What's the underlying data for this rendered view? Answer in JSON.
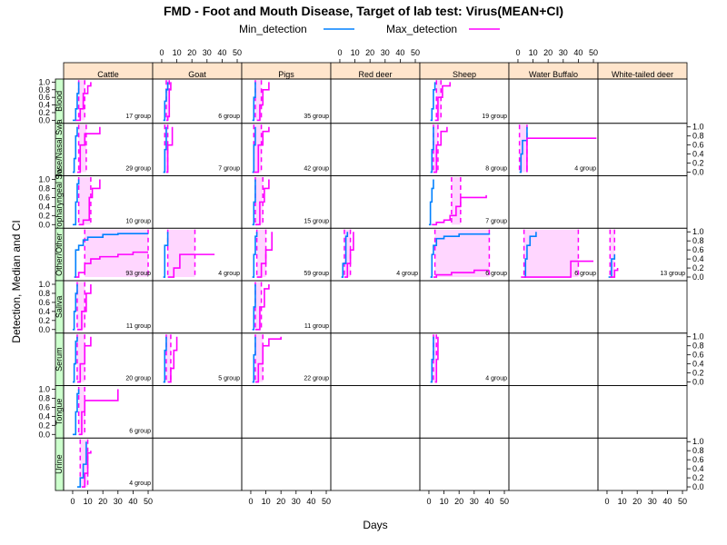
{
  "chart_data": {
    "type": "line",
    "title": "FMD - Foot and Mouth Disease, Target of lab test: Virus(MEAN+CI)",
    "xlabel": "Days",
    "ylabel": "Detection, Median and CI",
    "xlim": [
      -6,
      53
    ],
    "ylim": [
      -0.08,
      1.08
    ],
    "x_ticks": [
      0,
      10,
      20,
      30,
      40,
      50
    ],
    "y_ticks": [
      0.0,
      0.2,
      0.4,
      0.6,
      0.8,
      1.0
    ],
    "y_tick_labels": [
      "0.0",
      "0.2",
      "0.4",
      "0.6",
      "0.8",
      "1.0"
    ],
    "legend": {
      "position": "top-center",
      "items": [
        {
          "name": "Min_detection",
          "color": "#0080ff"
        },
        {
          "name": "Max_detection",
          "color": "#ff00ff"
        }
      ]
    },
    "colors": {
      "min": "#0080ff",
      "max": "#ff00ff",
      "ci_fill": "#ffd6ff",
      "strip_column": "#ffe5cc",
      "strip_row": "#ccffcc"
    },
    "columns": [
      "Cattle",
      "Goat",
      "Pigs",
      "Red deer",
      "Sheep",
      "Water Buffalo",
      "White-tailed deer"
    ],
    "rows": [
      "Blood",
      "Nasal Swab",
      "Oropharyngeal Swab",
      "Other/Other",
      "Saliva",
      "Serum",
      "Tongue",
      "Urine"
    ],
    "row_strip_labels": [
      "Blood",
      "Nose/Nasal Swa",
      "Oropharyngeal Sw",
      "Other/Other",
      "Saliva",
      "Serum",
      "Tongue",
      "Urine"
    ],
    "panels": [
      {
        "col": 0,
        "row": 0,
        "groups": "17 group",
        "min": [
          [
            0,
            0
          ],
          [
            2,
            0.3
          ],
          [
            3,
            0.7
          ],
          [
            4,
            1
          ]
        ],
        "max": [
          [
            2,
            0
          ],
          [
            5,
            0.3
          ],
          [
            7,
            0.7
          ],
          [
            10,
            0.9
          ],
          [
            12,
            1
          ]
        ],
        "ci_x": [
          4,
          8
        ]
      },
      {
        "col": 1,
        "row": 0,
        "groups": "6 group",
        "min": [
          [
            1,
            0
          ],
          [
            2,
            0.5
          ],
          [
            3,
            0.8
          ],
          [
            4,
            1
          ]
        ],
        "max": [
          [
            3,
            0
          ],
          [
            4,
            0.1
          ],
          [
            5,
            0.8
          ],
          [
            6,
            1
          ]
        ],
        "ci_x": [
          3,
          5
        ]
      },
      {
        "col": 2,
        "row": 0,
        "groups": "35 group",
        "min": [
          [
            1,
            0
          ],
          [
            2,
            0.6
          ],
          [
            3,
            1
          ]
        ],
        "max": [
          [
            4,
            0
          ],
          [
            6,
            0.4
          ],
          [
            8,
            0.8
          ],
          [
            12,
            1
          ]
        ],
        "ci_x": [
          3,
          7
        ]
      },
      {
        "col": 4,
        "row": 0,
        "groups": "19 group",
        "min": [
          [
            1,
            0
          ],
          [
            2,
            0.3
          ],
          [
            3,
            0.8
          ],
          [
            4,
            1
          ]
        ],
        "max": [
          [
            4,
            0
          ],
          [
            6,
            0.6
          ],
          [
            9,
            0.9
          ],
          [
            14,
            1
          ]
        ],
        "ci_x": [
          5,
          8
        ]
      },
      {
        "col": 0,
        "row": 1,
        "groups": "29 group",
        "min": [
          [
            0,
            0
          ],
          [
            1,
            0.3
          ],
          [
            2,
            0.8
          ],
          [
            3,
            1
          ]
        ],
        "max": [
          [
            3,
            0
          ],
          [
            5,
            0.6
          ],
          [
            8,
            0.85
          ],
          [
            18,
            1
          ]
        ],
        "ci_x": [
          4,
          9
        ]
      },
      {
        "col": 1,
        "row": 1,
        "groups": "7 group",
        "min": [
          [
            1,
            0
          ],
          [
            2,
            0.5
          ],
          [
            3,
            1
          ]
        ],
        "max": [
          [
            3,
            0
          ],
          [
            4,
            0.6
          ],
          [
            7,
            1
          ]
        ],
        "ci_x": [
          2,
          4
        ]
      },
      {
        "col": 2,
        "row": 1,
        "groups": "42 group",
        "min": [
          [
            1,
            0
          ],
          [
            2,
            0.6
          ],
          [
            3,
            1
          ]
        ],
        "max": [
          [
            2,
            0
          ],
          [
            5,
            0.6
          ],
          [
            8,
            0.9
          ],
          [
            12,
            1
          ]
        ],
        "ci_x": [
          2,
          7
        ]
      },
      {
        "col": 4,
        "row": 1,
        "groups": "8 group",
        "min": [
          [
            1,
            0
          ],
          [
            2,
            0.5
          ],
          [
            3,
            1
          ]
        ],
        "max": [
          [
            3,
            0
          ],
          [
            5,
            0.6
          ],
          [
            8,
            0.9
          ],
          [
            12,
            1
          ]
        ],
        "ci_x": [
          3,
          6
        ]
      },
      {
        "col": 5,
        "row": 1,
        "groups": "4 group",
        "min": [
          [
            1,
            0
          ],
          [
            2,
            0.4
          ],
          [
            3,
            0.7
          ],
          [
            6,
            1
          ]
        ],
        "max": [
          [
            6,
            0
          ],
          [
            6,
            0.75
          ],
          [
            52,
            0.75
          ]
        ],
        "ci_x": [
          1,
          6
        ]
      },
      {
        "col": 0,
        "row": 2,
        "groups": "10 group",
        "min": [
          [
            0,
            0
          ],
          [
            2,
            0.5
          ],
          [
            3,
            0.9
          ],
          [
            4,
            1
          ]
        ],
        "max": [
          [
            4,
            0
          ],
          [
            7,
            0.1
          ],
          [
            11,
            0.6
          ],
          [
            13,
            0.8
          ],
          [
            18,
            1
          ]
        ],
        "ci_x": [
          4,
          12
        ]
      },
      {
        "col": 2,
        "row": 2,
        "groups": "15 group",
        "min": [
          [
            1,
            0
          ],
          [
            2,
            0.5
          ],
          [
            3,
            1
          ]
        ],
        "max": [
          [
            3,
            0
          ],
          [
            6,
            0.5
          ],
          [
            9,
            0.8
          ],
          [
            12,
            1
          ]
        ],
        "ci_x": [
          3,
          8
        ]
      },
      {
        "col": 4,
        "row": 2,
        "groups": "7 group",
        "min": [
          [
            0,
            0
          ],
          [
            1,
            0.5
          ],
          [
            2,
            0.8
          ],
          [
            3,
            1
          ]
        ],
        "max": [
          [
            2,
            0
          ],
          [
            5,
            0.05
          ],
          [
            10,
            0.1
          ],
          [
            14,
            0.2
          ],
          [
            18,
            0.4
          ],
          [
            21,
            0.6
          ],
          [
            38,
            0.65
          ]
        ],
        "ci_x": [
          15,
          21
        ]
      },
      {
        "col": 0,
        "row": 3,
        "groups": "93 group",
        "min": [
          [
            1,
            0
          ],
          [
            2,
            0.6
          ],
          [
            4,
            0.7
          ],
          [
            7,
            0.82
          ],
          [
            10,
            0.88
          ],
          [
            20,
            0.94
          ],
          [
            30,
            0.96
          ],
          [
            50,
            0.96
          ]
        ],
        "max": [
          [
            2,
            0
          ],
          [
            4,
            0.1
          ],
          [
            8,
            0.3
          ],
          [
            12,
            0.4
          ],
          [
            18,
            0.45
          ],
          [
            30,
            0.5
          ],
          [
            40,
            0.55
          ],
          [
            50,
            0.55
          ]
        ],
        "ci_x": [
          8,
          50
        ]
      },
      {
        "col": 1,
        "row": 3,
        "groups": "4 group",
        "min": [
          [
            1,
            0
          ],
          [
            2,
            0.7
          ],
          [
            4,
            1
          ]
        ],
        "max": [
          [
            4,
            0
          ],
          [
            8,
            0.2
          ],
          [
            12,
            0.5
          ],
          [
            35,
            0.5
          ]
        ],
        "ci_x": [
          4,
          22
        ]
      },
      {
        "col": 2,
        "row": 3,
        "groups": "59 group",
        "min": [
          [
            1,
            0
          ],
          [
            2,
            0.5
          ],
          [
            3,
            0.9
          ],
          [
            4,
            1
          ]
        ],
        "max": [
          [
            4,
            0
          ],
          [
            7,
            0.3
          ],
          [
            10,
            0.6
          ],
          [
            14,
            1
          ]
        ],
        "ci_x": [
          4,
          10
        ]
      },
      {
        "col": 3,
        "row": 3,
        "groups": "4 group",
        "min": [
          [
            1,
            0
          ],
          [
            2,
            0.3
          ],
          [
            4,
            0.9
          ],
          [
            5,
            1
          ]
        ],
        "max": [
          [
            3,
            0
          ],
          [
            5,
            0.3
          ],
          [
            7,
            0.6
          ],
          [
            9,
            1
          ]
        ],
        "ci_x": [
          3,
          7
        ]
      },
      {
        "col": 4,
        "row": 3,
        "groups": "6 group",
        "min": [
          [
            1,
            0
          ],
          [
            2,
            0.5
          ],
          [
            3,
            0.7
          ],
          [
            5,
            0.85
          ],
          [
            10,
            0.9
          ],
          [
            20,
            0.95
          ],
          [
            40,
            0.96
          ]
        ],
        "max": [
          [
            3,
            0
          ],
          [
            5,
            0.05
          ],
          [
            15,
            0.1
          ],
          [
            30,
            0.15
          ],
          [
            40,
            0.15
          ]
        ],
        "ci_x": [
          4,
          40
        ]
      },
      {
        "col": 5,
        "row": 3,
        "groups": "6 group",
        "min": [
          [
            4,
            0
          ],
          [
            5,
            0.4
          ],
          [
            6,
            0.7
          ],
          [
            8,
            0.9
          ],
          [
            12,
            1
          ]
        ],
        "max": [
          [
            2,
            0
          ],
          [
            10,
            0
          ],
          [
            35,
            0
          ],
          [
            35,
            0.35
          ],
          [
            50,
            0.35
          ]
        ],
        "ci_x": [
          4,
          40
        ]
      },
      {
        "col": 6,
        "row": 3,
        "groups": "13 group",
        "min": [
          [
            1,
            0
          ],
          [
            3,
            0.4
          ],
          [
            5,
            0.5
          ]
        ],
        "max": [
          [
            2,
            0
          ],
          [
            5,
            0.15
          ],
          [
            7,
            0.2
          ]
        ],
        "ci_x": [
          2,
          5
        ]
      },
      {
        "col": 0,
        "row": 4,
        "groups": "11 group",
        "min": [
          [
            0,
            0
          ],
          [
            1,
            0.4
          ],
          [
            2,
            0.8
          ],
          [
            3,
            1
          ]
        ],
        "max": [
          [
            3,
            0
          ],
          [
            6,
            0.4
          ],
          [
            9,
            0.8
          ],
          [
            12,
            1
          ]
        ],
        "ci_x": [
          3,
          8
        ]
      },
      {
        "col": 2,
        "row": 4,
        "groups": "11 group",
        "min": [
          [
            1,
            0
          ],
          [
            2,
            0.5
          ],
          [
            3,
            1
          ]
        ],
        "max": [
          [
            3,
            0
          ],
          [
            6,
            0.5
          ],
          [
            9,
            0.9
          ],
          [
            12,
            1
          ]
        ],
        "ci_x": [
          3,
          7
        ]
      },
      {
        "col": 0,
        "row": 5,
        "groups": "20 group",
        "min": [
          [
            0,
            0
          ],
          [
            1,
            0.4
          ],
          [
            2,
            0.9
          ],
          [
            3,
            1
          ]
        ],
        "max": [
          [
            3,
            0
          ],
          [
            5,
            0.4
          ],
          [
            8,
            0.8
          ],
          [
            12,
            1
          ]
        ],
        "ci_x": [
          3,
          8
        ]
      },
      {
        "col": 1,
        "row": 5,
        "groups": "5 group",
        "min": [
          [
            1,
            0
          ],
          [
            2,
            0.7
          ],
          [
            3,
            1
          ]
        ],
        "max": [
          [
            4,
            0
          ],
          [
            6,
            0.3
          ],
          [
            8,
            0.7
          ],
          [
            10,
            1
          ]
        ],
        "ci_x": [
          3,
          6
        ]
      },
      {
        "col": 2,
        "row": 5,
        "groups": "22 group",
        "min": [
          [
            1,
            0
          ],
          [
            2,
            0.6
          ],
          [
            3,
            1
          ]
        ],
        "max": [
          [
            3,
            0
          ],
          [
            5,
            0.4
          ],
          [
            8,
            0.8
          ],
          [
            12,
            0.95
          ],
          [
            20,
            1
          ]
        ],
        "ci_x": [
          3,
          8
        ]
      },
      {
        "col": 4,
        "row": 5,
        "groups": "4 group",
        "min": [
          [
            1,
            0
          ],
          [
            2,
            0.5
          ],
          [
            3,
            1
          ]
        ],
        "max": [
          [
            4,
            0
          ],
          [
            5,
            0.5
          ],
          [
            6,
            1
          ]
        ],
        "ci_x": [
          3,
          5
        ]
      },
      {
        "col": 0,
        "row": 6,
        "groups": "6 group",
        "min": [
          [
            0,
            0
          ],
          [
            2,
            0.5
          ],
          [
            3,
            0.9
          ],
          [
            4,
            1
          ]
        ],
        "max": [
          [
            4,
            0
          ],
          [
            6,
            0.5
          ],
          [
            8,
            0.75
          ],
          [
            30,
            0.75
          ],
          [
            30,
            1
          ]
        ],
        "ci_x": [
          4,
          8
        ]
      },
      {
        "col": 0,
        "row": 7,
        "groups": "4 group",
        "min": [
          [
            3,
            0
          ],
          [
            5,
            0.2
          ],
          [
            7,
            0.5
          ],
          [
            9,
            1
          ]
        ],
        "max": [
          [
            6,
            0
          ],
          [
            8,
            0.3
          ],
          [
            10,
            0.75
          ],
          [
            12,
            0.8
          ]
        ],
        "ci_x": [
          5,
          10
        ]
      }
    ]
  }
}
